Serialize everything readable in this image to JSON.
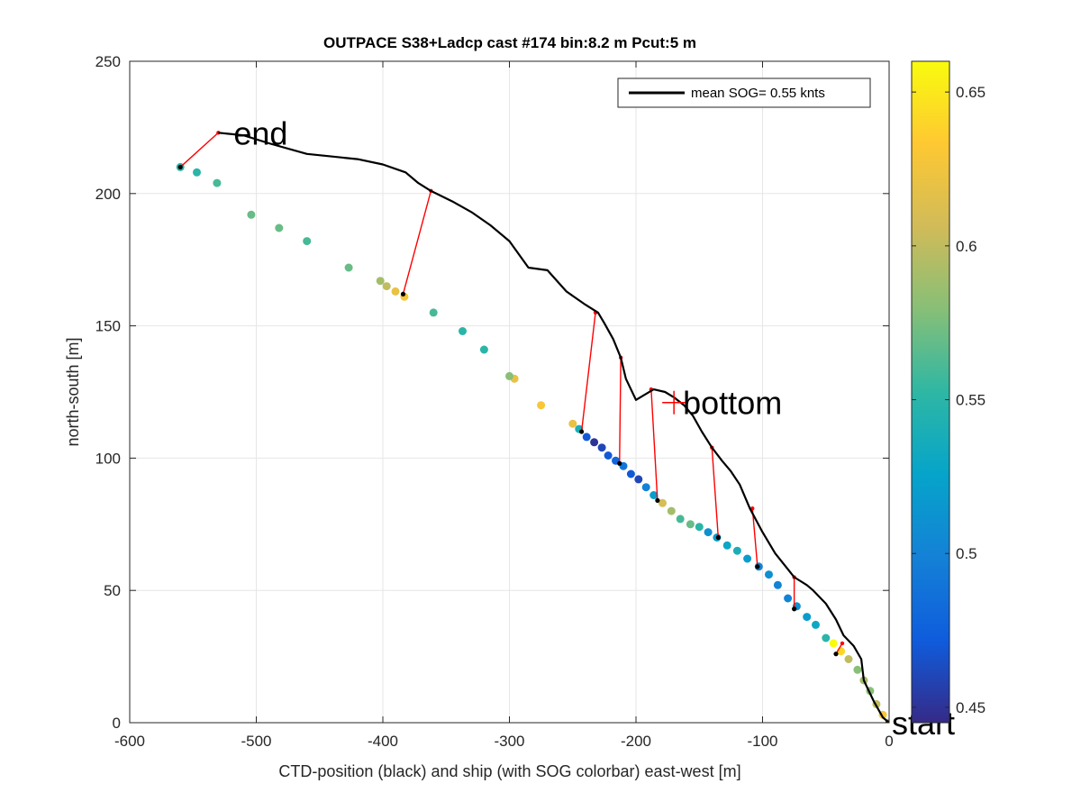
{
  "chart_data": {
    "type": "scatter",
    "title": "OUTPACE S38+Ladcp cast #174 bin:8.2 m  Pcut:5 m",
    "xlabel": "CTD-position (black) and ship (with SOG colorbar) east-west [m]",
    "ylabel": "north-south [m]",
    "xlim": [
      -600,
      0
    ],
    "ylim": [
      0,
      250
    ],
    "xticks": [
      -600,
      -500,
      -400,
      -300,
      -200,
      -100,
      0
    ],
    "yticks": [
      0,
      50,
      100,
      150,
      200,
      250
    ],
    "xtick_labels": [
      "-600",
      "-500",
      "-400",
      "-300",
      "-200",
      "-100",
      "0"
    ],
    "ytick_labels": [
      "0",
      "50",
      "100",
      "150",
      "200",
      "250"
    ],
    "grid": true,
    "legend": {
      "location": "top-right",
      "entries": [
        "mean SOG=  0.55 knts"
      ]
    },
    "colorbar": {
      "range": [
        0.445,
        0.66
      ],
      "ticks": [
        0.45,
        0.5,
        0.55,
        0.6,
        0.65
      ],
      "tick_labels": [
        "0.45",
        "0.5",
        "0.55",
        "0.6",
        "0.65"
      ],
      "colormap": [
        "#352a87",
        "#0f5cdd",
        "#1481d6",
        "#06a4ca",
        "#2eb7a4",
        "#87bf77",
        "#d1bb59",
        "#fec832",
        "#f9fb0e"
      ]
    },
    "annotations": [
      {
        "text": "end",
        "x": -525,
        "y": 223
      },
      {
        "text": "bottom",
        "x": -170,
        "y": 121
      },
      {
        "text": "start",
        "x": -5,
        "y": 0
      }
    ],
    "series": [
      {
        "name": "mean SOG=  0.55 knts",
        "kind": "ctd_track",
        "color": "#000000",
        "x": [
          0,
          -5,
          -12,
          -20,
          -22,
          -28,
          -36,
          -42,
          -50,
          -60,
          -65,
          -75,
          -80,
          -90,
          -100,
          -110,
          -118,
          -125,
          -132,
          -140,
          -148,
          -155,
          -162,
          -170,
          -177,
          -186,
          -193,
          -200,
          -208,
          -212,
          -218,
          -225,
          -230,
          -240,
          -255,
          -270,
          -285,
          -300,
          -315,
          -330,
          -345,
          -362,
          -372,
          -382,
          -400,
          -420,
          -440,
          -460,
          -490,
          -510,
          -530
        ],
        "y": [
          0,
          2,
          8,
          16,
          24,
          29,
          33,
          39,
          45,
          50,
          52,
          55,
          58,
          64,
          72,
          81,
          90,
          95,
          99,
          104,
          110,
          116,
          120,
          123,
          125,
          126,
          124,
          122,
          130,
          138,
          145,
          151,
          155,
          158,
          163,
          171,
          172,
          182,
          188,
          193,
          197,
          201,
          204,
          208,
          211,
          213,
          214,
          215,
          219,
          222,
          223
        ]
      },
      {
        "name": "",
        "kind": "ship_track",
        "points": [
          [
            0,
            0,
            0.61
          ],
          [
            -5,
            3,
            0.63
          ],
          [
            -10,
            7,
            0.6
          ],
          [
            -15,
            12,
            0.58
          ],
          [
            -20,
            16,
            0.59
          ],
          [
            -25,
            20,
            0.58
          ],
          [
            -32,
            24,
            0.6
          ],
          [
            -38,
            27,
            0.64
          ],
          [
            -44,
            30,
            0.66
          ],
          [
            -50,
            32,
            0.55
          ],
          [
            -58,
            37,
            0.53
          ],
          [
            -65,
            40,
            0.52
          ],
          [
            -73,
            44,
            0.51
          ],
          [
            -80,
            47,
            0.5
          ],
          [
            -88,
            52,
            0.5
          ],
          [
            -95,
            56,
            0.51
          ],
          [
            -103,
            59,
            0.5
          ],
          [
            -112,
            62,
            0.52
          ],
          [
            -120,
            65,
            0.54
          ],
          [
            -128,
            67,
            0.53
          ],
          [
            -136,
            70,
            0.52
          ],
          [
            -143,
            72,
            0.51
          ],
          [
            -150,
            74,
            0.55
          ],
          [
            -157,
            75,
            0.57
          ],
          [
            -165,
            77,
            0.56
          ],
          [
            -172,
            80,
            0.59
          ],
          [
            -179,
            83,
            0.61
          ],
          [
            -186,
            86,
            0.52
          ],
          [
            -192,
            89,
            0.5
          ],
          [
            -198,
            92,
            0.46
          ],
          [
            -204,
            94,
            0.47
          ],
          [
            -210,
            97,
            0.49
          ],
          [
            -216,
            99,
            0.48
          ],
          [
            -222,
            101,
            0.47
          ],
          [
            -227,
            104,
            0.46
          ],
          [
            -233,
            106,
            0.45
          ],
          [
            -239,
            108,
            0.47
          ],
          [
            -245,
            111,
            0.54
          ],
          [
            -250,
            113,
            0.62
          ],
          [
            -275,
            120,
            0.63
          ],
          [
            -296,
            130,
            0.62
          ],
          [
            -300,
            131,
            0.58
          ],
          [
            -320,
            141,
            0.55
          ],
          [
            -337,
            148,
            0.55
          ],
          [
            -360,
            155,
            0.56
          ],
          [
            -383,
            161,
            0.63
          ],
          [
            -390,
            163,
            0.62
          ],
          [
            -397,
            165,
            0.6
          ],
          [
            -402,
            167,
            0.59
          ],
          [
            -427,
            172,
            0.57
          ],
          [
            -460,
            182,
            0.56
          ],
          [
            -482,
            187,
            0.57
          ],
          [
            -504,
            192,
            0.57
          ],
          [
            -531,
            204,
            0.56
          ],
          [
            -547,
            208,
            0.55
          ],
          [
            -560,
            210,
            0.55
          ]
        ]
      },
      {
        "name": "",
        "kind": "ctd_ship_links",
        "color": "#ff0000",
        "pairs": [
          [
            [
              -1,
              0
            ],
            [
              0,
              0
            ]
          ],
          [
            [
              -42,
              26
            ],
            [
              -37,
              30
            ]
          ],
          [
            [
              -75,
              43
            ],
            [
              -75,
              55
            ]
          ],
          [
            [
              -104,
              59
            ],
            [
              -108,
              81
            ]
          ],
          [
            [
              -135,
              70
            ],
            [
              -140,
              104
            ]
          ],
          [
            [
              -183,
              84
            ],
            [
              -188,
              126
            ]
          ],
          [
            [
              -213,
              98
            ],
            [
              -212,
              138
            ]
          ],
          [
            [
              -243,
              110
            ],
            [
              -232,
              155
            ]
          ],
          [
            [
              -384,
              162
            ],
            [
              -362,
              201
            ]
          ],
          [
            [
              -560,
              210
            ],
            [
              -530,
              223
            ]
          ]
        ]
      }
    ]
  }
}
